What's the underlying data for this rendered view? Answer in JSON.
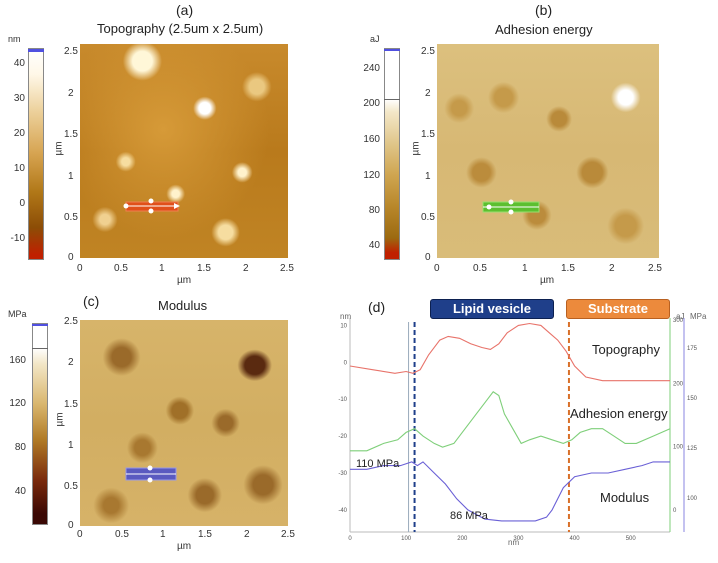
{
  "panels": {
    "a": {
      "label": "(a)",
      "title": "Topography (2.5um x 2.5um)",
      "unit": "nm",
      "cb_ticks": [
        "40",
        "30",
        "20",
        "10",
        "0",
        "-10"
      ],
      "y_ticks": [
        "2.5",
        "2",
        "1.5",
        "1",
        "0.5",
        "0"
      ],
      "x_ticks": [
        "0",
        "0.5",
        "1",
        "1.5",
        "2",
        "2.5"
      ],
      "axis_unit": "µm"
    },
    "b": {
      "label": "(b)",
      "title": "Adhesion energy",
      "unit": "aJ",
      "cb_ticks": [
        "240",
        "200",
        "160",
        "120",
        "80",
        "40"
      ],
      "y_ticks": [
        "2.5",
        "2",
        "1.5",
        "1",
        "0.5",
        "0"
      ],
      "x_ticks": [
        "0",
        "0.5",
        "1",
        "1.5",
        "2",
        "2.5"
      ],
      "axis_unit": "µm"
    },
    "c": {
      "label": "(c)",
      "title": "Modulus",
      "unit": "MPa",
      "cb_ticks": [
        "160",
        "120",
        "80",
        "40"
      ],
      "y_ticks": [
        "2.5",
        "2",
        "1.5",
        "1",
        "0.5",
        "0"
      ],
      "x_ticks": [
        "0",
        "0.5",
        "1",
        "1.5",
        "2",
        "2.5"
      ],
      "axis_unit": "µm"
    },
    "d": {
      "label": "(d)",
      "banner_left": "Lipid vesicle",
      "banner_right": "Substrate",
      "label_topography": "Topography",
      "label_adhesion": "Adhesion energy",
      "label_modulus": "Modulus",
      "ann_110": "110 MPa",
      "ann_86": "86 MPa",
      "left_unit": "nm",
      "aj_unit": "aJ",
      "mpa_unit": "MPa",
      "x_unit": "nm"
    }
  },
  "colors": {
    "topography": "#e8736a",
    "adhesion": "#7fcf7a",
    "modulus": "#6a60d6",
    "banner_left": "#1f3f8a",
    "banner_right": "#ec8a3c",
    "dash_left": "#1f3f8a",
    "dash_right": "#d9702a"
  },
  "chart_data": {
    "type": "line",
    "title": "",
    "xlabel": "nm",
    "x_ticks": [
      "0",
      "100",
      "200",
      "300",
      "400",
      "500"
    ],
    "y_left_ticks": [
      "10",
      "0",
      "-10",
      "-20",
      "-30",
      "-40"
    ],
    "y_aj_ticks": [
      "300",
      "200",
      "100",
      "0"
    ],
    "y_mpa_ticks": [
      "175",
      "150",
      "125",
      "100"
    ],
    "xlim": [
      0,
      570
    ],
    "ylim": [
      -46,
      12
    ],
    "markers_x": [
      115,
      390
    ],
    "series": [
      {
        "name": "Topography",
        "x": [
          0,
          40,
          80,
          100,
          112,
          125,
          140,
          160,
          175,
          195,
          215,
          235,
          250,
          265,
          280,
          300,
          320,
          340,
          355,
          370,
          385,
          400,
          420,
          450,
          500,
          540,
          570
        ],
        "y": [
          -1,
          -2,
          -3,
          -2.5,
          -3,
          -2,
          2,
          6,
          7,
          6.5,
          5,
          4,
          3.5,
          5,
          8,
          10,
          10.5,
          10,
          8,
          6,
          3,
          -1,
          -4,
          -5,
          -5,
          -5,
          -5
        ]
      },
      {
        "name": "Adhesion energy",
        "x": [
          0,
          30,
          60,
          85,
          100,
          115,
          130,
          150,
          165,
          185,
          205,
          225,
          240,
          255,
          265,
          275,
          290,
          305,
          320,
          340,
          360,
          380,
          395,
          410,
          430,
          450,
          470,
          490,
          510,
          540,
          570
        ],
        "y": [
          -24,
          -24,
          -22,
          -21,
          -19,
          -18,
          -20,
          -22,
          -23,
          -22,
          -18,
          -14,
          -11,
          -8,
          -9,
          -14,
          -18,
          -22,
          -21,
          -20,
          -21,
          -22,
          -21,
          -19,
          -18,
          -18,
          -20,
          -22,
          -22,
          -20,
          -18
        ]
      },
      {
        "name": "Modulus",
        "x": [
          0,
          30,
          60,
          90,
          110,
          120,
          130,
          150,
          170,
          190,
          210,
          240,
          270,
          300,
          330,
          350,
          360,
          380,
          400,
          430,
          460,
          490,
          520,
          540,
          570
        ],
        "y": [
          -29,
          -29,
          -28,
          -28,
          -27,
          -28,
          -27,
          -30,
          -33,
          -37,
          -40,
          -42.5,
          -43,
          -43,
          -43,
          -42,
          -40,
          -34,
          -31,
          -30,
          -30,
          -29,
          -28,
          -27,
          -27
        ]
      }
    ]
  }
}
